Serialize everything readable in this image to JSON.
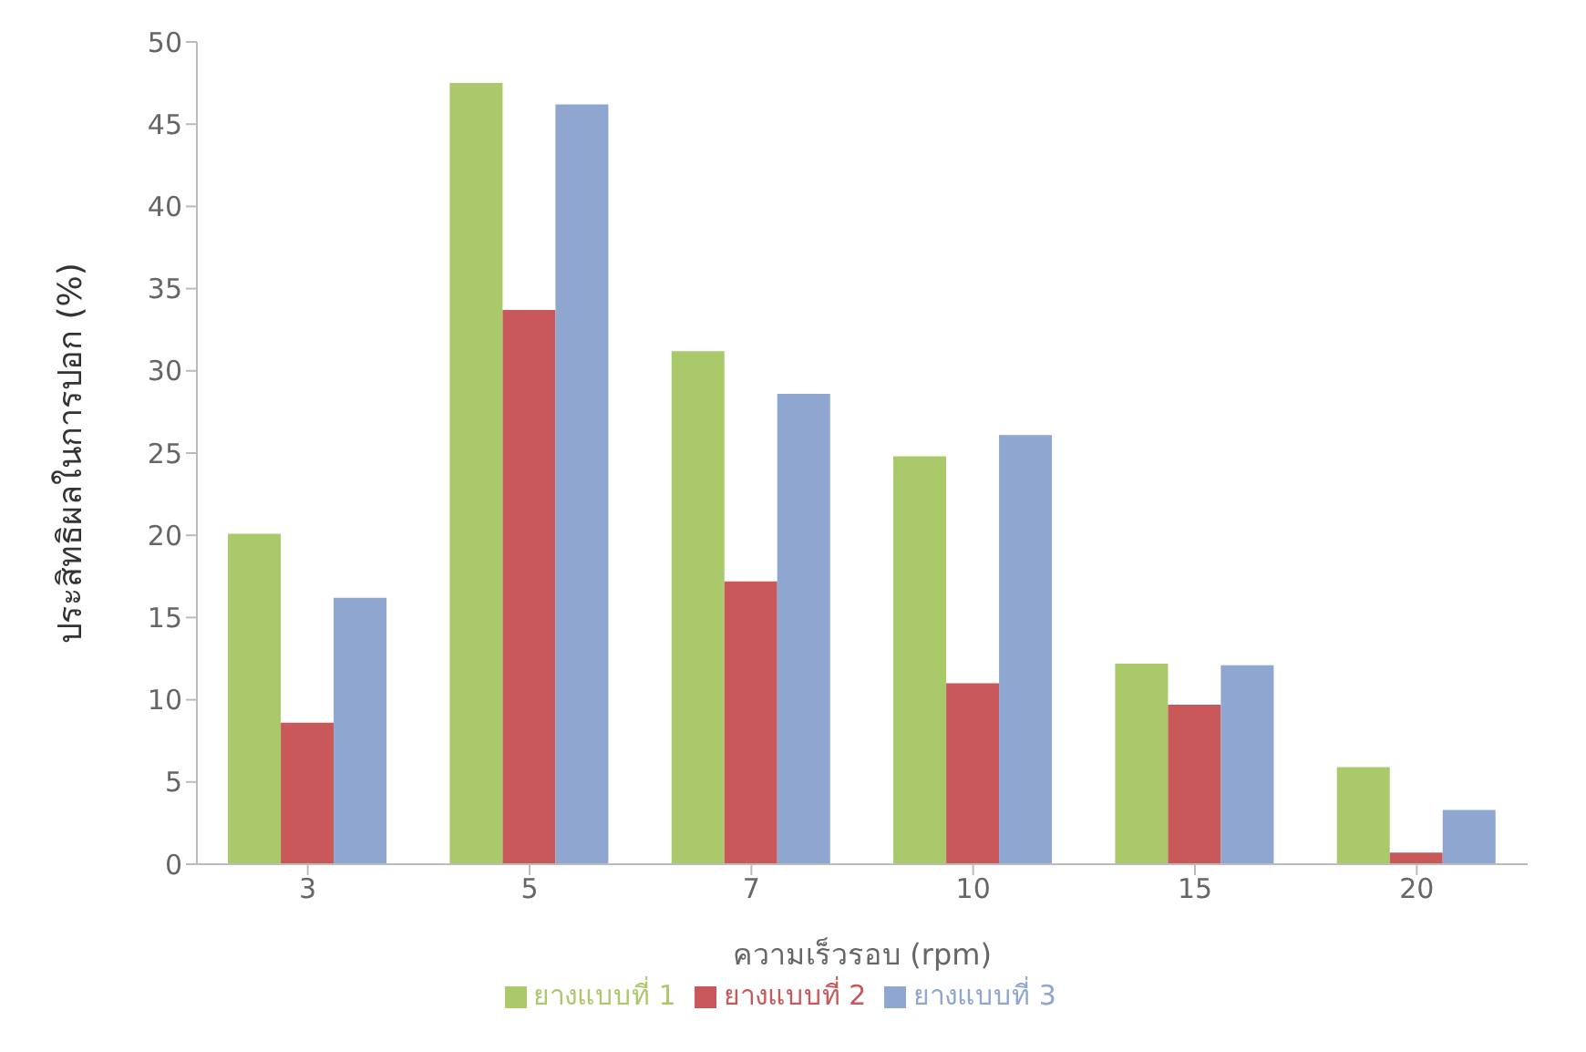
{
  "chart_data": {
    "type": "bar",
    "xlabel": "ความเร็วรอบ (rpm)",
    "ylabel": "ประสิทธิผลในการปอก (%)",
    "categories": [
      "3",
      "5",
      "7",
      "10",
      "15",
      "20"
    ],
    "series": [
      {
        "name": "ยางแบบที่ 1",
        "color": "#a9c96a",
        "values": [
          20.1,
          47.5,
          31.2,
          24.8,
          12.2,
          5.9
        ]
      },
      {
        "name": "ยางแบบที่ 2",
        "color": "#c9585a",
        "values": [
          8.6,
          33.7,
          17.2,
          11.0,
          9.7,
          0.7
        ]
      },
      {
        "name": "ยางแบบที่ 3",
        "color": "#8ea6d0",
        "values": [
          16.2,
          46.2,
          28.6,
          26.1,
          12.1,
          3.3
        ]
      }
    ],
    "ylim": [
      0,
      50
    ],
    "yticks": [
      0,
      5,
      10,
      15,
      20,
      25,
      30,
      35,
      40,
      45,
      50
    ],
    "legend": "bottom"
  }
}
